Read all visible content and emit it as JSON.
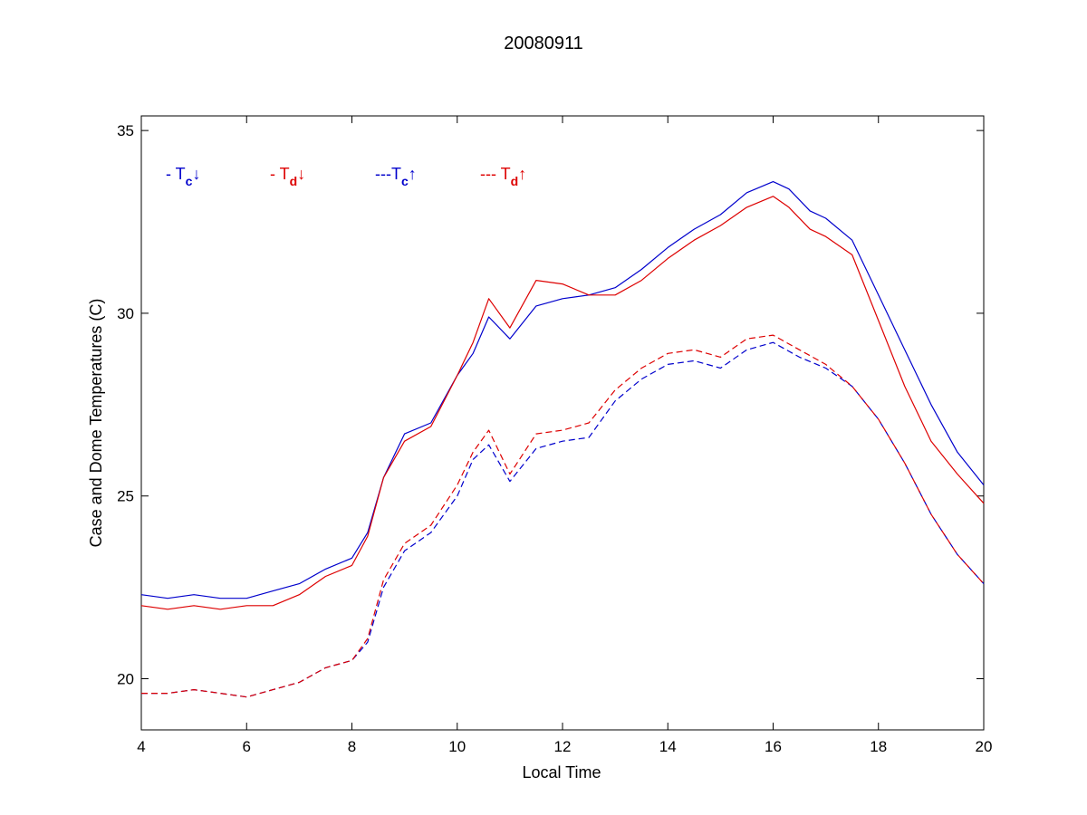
{
  "chart_data": {
    "type": "line",
    "title": "20080911",
    "xlabel": "Local Time",
    "ylabel": "Case and Dome Temperatures (C)",
    "xlim": [
      4,
      20
    ],
    "ylim": [
      18.6,
      35.4
    ],
    "xticks": [
      4,
      6,
      8,
      10,
      12,
      14,
      16,
      18,
      20
    ],
    "yticks": [
      20,
      25,
      30,
      35
    ],
    "xtick_labels": [
      "4",
      "6",
      "8",
      "10",
      "12",
      "14",
      "16",
      "18",
      "20"
    ],
    "ytick_labels": [
      "20",
      "25",
      "30",
      "35"
    ],
    "grid": false,
    "legend_position": "top-left",
    "series": [
      {
        "name": "Tc↓",
        "legend_prefix": "- ",
        "symbol": "T",
        "subscript": "c",
        "arrow": "↓",
        "color": "#0000cc",
        "dash": "solid",
        "x": [
          4.0,
          4.5,
          5.0,
          5.5,
          6.0,
          6.5,
          7.0,
          7.5,
          8.0,
          8.3,
          8.6,
          9.0,
          9.5,
          10.0,
          10.3,
          10.6,
          11.0,
          11.5,
          12.0,
          12.5,
          13.0,
          13.5,
          14.0,
          14.5,
          15.0,
          15.5,
          16.0,
          16.3,
          16.7,
          17.0,
          17.5,
          18.0,
          18.5,
          19.0,
          19.5,
          20.0
        ],
        "y": [
          22.3,
          22.2,
          22.3,
          22.2,
          22.2,
          22.4,
          22.6,
          23.0,
          23.3,
          24.0,
          25.5,
          26.7,
          27.0,
          28.3,
          28.9,
          29.9,
          29.3,
          30.2,
          30.4,
          30.5,
          30.7,
          31.2,
          31.8,
          32.3,
          32.7,
          33.3,
          33.6,
          33.4,
          32.8,
          32.6,
          32.0,
          30.5,
          29.0,
          27.5,
          26.2,
          25.3
        ]
      },
      {
        "name": "Td↓",
        "legend_prefix": "- ",
        "symbol": "T",
        "subscript": "d",
        "arrow": "↓",
        "color": "#dd0000",
        "dash": "solid",
        "x": [
          4.0,
          4.5,
          5.0,
          5.5,
          6.0,
          6.5,
          7.0,
          7.5,
          8.0,
          8.3,
          8.6,
          9.0,
          9.5,
          10.0,
          10.3,
          10.6,
          11.0,
          11.5,
          12.0,
          12.5,
          13.0,
          13.5,
          14.0,
          14.5,
          15.0,
          15.5,
          16.0,
          16.3,
          16.7,
          17.0,
          17.5,
          18.0,
          18.5,
          19.0,
          19.5,
          20.0
        ],
        "y": [
          22.0,
          21.9,
          22.0,
          21.9,
          22.0,
          22.0,
          22.3,
          22.8,
          23.1,
          23.9,
          25.5,
          26.5,
          26.9,
          28.3,
          29.2,
          30.4,
          29.6,
          30.9,
          30.8,
          30.5,
          30.5,
          30.9,
          31.5,
          32.0,
          32.4,
          32.9,
          33.2,
          32.9,
          32.3,
          32.1,
          31.6,
          29.8,
          28.0,
          26.5,
          25.6,
          24.8
        ]
      },
      {
        "name": "Tc↑",
        "legend_prefix": "---",
        "symbol": "T",
        "subscript": "c",
        "arrow": "↑",
        "color": "#0000cc",
        "dash": "dashed",
        "x": [
          4.0,
          4.5,
          5.0,
          5.5,
          6.0,
          6.5,
          7.0,
          7.5,
          8.0,
          8.3,
          8.6,
          9.0,
          9.5,
          10.0,
          10.3,
          10.6,
          11.0,
          11.5,
          12.0,
          12.5,
          13.0,
          13.5,
          14.0,
          14.5,
          15.0,
          15.5,
          16.0,
          16.5,
          17.0,
          17.5,
          18.0,
          18.5,
          19.0,
          19.5,
          20.0
        ],
        "y": [
          19.6,
          19.6,
          19.7,
          19.6,
          19.5,
          19.7,
          19.9,
          20.3,
          20.5,
          21.0,
          22.5,
          23.5,
          24.0,
          25.0,
          26.0,
          26.4,
          25.4,
          26.3,
          26.5,
          26.6,
          27.6,
          28.2,
          28.6,
          28.7,
          28.5,
          29.0,
          29.2,
          28.8,
          28.5,
          28.0,
          27.1,
          25.9,
          24.5,
          23.4,
          22.6
        ]
      },
      {
        "name": "Td↑",
        "legend_prefix": "--- ",
        "symbol": "T",
        "subscript": "d",
        "arrow": "↑",
        "color": "#dd0000",
        "dash": "dashed",
        "x": [
          4.0,
          4.5,
          5.0,
          5.5,
          6.0,
          6.5,
          7.0,
          7.5,
          8.0,
          8.3,
          8.6,
          9.0,
          9.5,
          10.0,
          10.3,
          10.6,
          11.0,
          11.5,
          12.0,
          12.5,
          13.0,
          13.5,
          14.0,
          14.5,
          15.0,
          15.5,
          16.0,
          16.5,
          17.0,
          17.5,
          18.0,
          18.5,
          19.0,
          19.5,
          20.0
        ],
        "y": [
          19.6,
          19.6,
          19.7,
          19.6,
          19.5,
          19.7,
          19.9,
          20.3,
          20.5,
          21.1,
          22.7,
          23.7,
          24.2,
          25.3,
          26.2,
          26.8,
          25.6,
          26.7,
          26.8,
          27.0,
          27.9,
          28.5,
          28.9,
          29.0,
          28.8,
          29.3,
          29.4,
          29.0,
          28.6,
          28.0,
          27.1,
          25.9,
          24.5,
          23.4,
          22.6
        ]
      }
    ]
  }
}
